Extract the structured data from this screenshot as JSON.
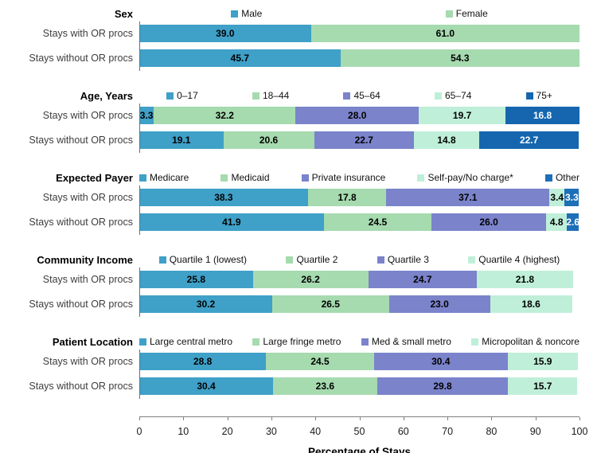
{
  "page": {
    "background": "#FFFFFF"
  },
  "rows": [
    "Stays with OR procs",
    "Stays without OR procs"
  ],
  "axis": {
    "title": "Percentage of Stays",
    "min": 0,
    "max": 100,
    "tick_step": 10,
    "ticks": [
      0,
      10,
      20,
      30,
      40,
      50,
      60,
      70,
      80,
      90,
      100
    ]
  },
  "colors": {
    "blue": "#3FA0C8",
    "green": "#A6DAAF",
    "purple": "#7B83CB",
    "mint": "#BFEFD9",
    "dark_blue": "#1566AF",
    "other_blue": "#1D6FB8",
    "axis_line": "#808080"
  },
  "chart_data": [
    {
      "type": "bar",
      "stacked": true,
      "orientation": "horizontal",
      "group": "Sex",
      "legend_justify": "around",
      "categories": [
        "Stays with OR procs",
        "Stays without OR procs"
      ],
      "series": [
        {
          "name": "Male",
          "color": "#3FA0C8",
          "label_color": "#000000",
          "values": [
            39.0,
            45.7
          ]
        },
        {
          "name": "Female",
          "color": "#A6DAAF",
          "label_color": "#000000",
          "values": [
            61.0,
            54.3
          ]
        }
      ]
    },
    {
      "type": "bar",
      "stacked": true,
      "orientation": "horizontal",
      "group": "Age, Years",
      "legend_justify": "around",
      "categories": [
        "Stays with OR procs",
        "Stays without OR procs"
      ],
      "series": [
        {
          "name": "0–17",
          "color": "#3FA0C8",
          "label_color": "#000000",
          "values": [
            3.3,
            19.1
          ]
        },
        {
          "name": "18–44",
          "color": "#A6DAAF",
          "label_color": "#000000",
          "values": [
            32.2,
            20.6
          ]
        },
        {
          "name": "45–64",
          "color": "#7B83CB",
          "label_color": "#000000",
          "values": [
            28.0,
            22.7
          ]
        },
        {
          "name": "65–74",
          "color": "#BFEFD9",
          "label_color": "#000000",
          "values": [
            19.7,
            14.8
          ]
        },
        {
          "name": "75+",
          "color": "#1566AF",
          "label_color": "#FFFFFF",
          "values": [
            16.8,
            22.7
          ]
        }
      ]
    },
    {
      "type": "bar",
      "stacked": true,
      "orientation": "horizontal",
      "group": "Expected Payer",
      "legend_justify": "between",
      "categories": [
        "Stays with OR procs",
        "Stays without OR procs"
      ],
      "series": [
        {
          "name": "Medicare",
          "color": "#3FA0C8",
          "label_color": "#000000",
          "values": [
            38.3,
            41.9
          ]
        },
        {
          "name": "Medicaid",
          "color": "#A6DAAF",
          "label_color": "#000000",
          "values": [
            17.8,
            24.5
          ]
        },
        {
          "name": "Private insurance",
          "color": "#7B83CB",
          "label_color": "#000000",
          "values": [
            37.1,
            26.0
          ]
        },
        {
          "name": "Self-pay/No charge*",
          "color": "#BFEFD9",
          "label_color": "#000000",
          "values": [
            3.4,
            4.8
          ]
        },
        {
          "name": "Other",
          "color": "#1D6FB8",
          "label_color": "#FFFFFF",
          "values": [
            3.3,
            2.6
          ]
        }
      ]
    },
    {
      "type": "bar",
      "stacked": true,
      "orientation": "horizontal",
      "group": "Community Income",
      "legend_justify": "around",
      "categories": [
        "Stays with OR procs",
        "Stays without OR procs"
      ],
      "series": [
        {
          "name": "Quartile 1 (lowest)",
          "color": "#3FA0C8",
          "label_color": "#000000",
          "values": [
            25.8,
            30.2
          ]
        },
        {
          "name": "Quartile 2",
          "color": "#A6DAAF",
          "label_color": "#000000",
          "values": [
            26.2,
            26.5
          ]
        },
        {
          "name": "Quartile 3",
          "color": "#7B83CB",
          "label_color": "#000000",
          "values": [
            24.7,
            23.0
          ]
        },
        {
          "name": "Quartile 4 (highest)",
          "color": "#BFEFD9",
          "label_color": "#000000",
          "values": [
            21.8,
            18.6
          ]
        }
      ]
    },
    {
      "type": "bar",
      "stacked": true,
      "orientation": "horizontal",
      "group": "Patient Location",
      "legend_justify": "between",
      "categories": [
        "Stays with OR procs",
        "Stays without OR procs"
      ],
      "series": [
        {
          "name": "Large central metro",
          "color": "#3FA0C8",
          "label_color": "#000000",
          "values": [
            28.8,
            30.4
          ]
        },
        {
          "name": "Large fringe metro",
          "color": "#A6DAAF",
          "label_color": "#000000",
          "values": [
            24.5,
            23.6
          ]
        },
        {
          "name": "Med & small metro",
          "color": "#7B83CB",
          "label_color": "#000000",
          "values": [
            30.4,
            29.8
          ]
        },
        {
          "name": "Micropolitan & noncore",
          "color": "#BFEFD9",
          "label_color": "#000000",
          "values": [
            15.9,
            15.7
          ]
        }
      ]
    }
  ]
}
